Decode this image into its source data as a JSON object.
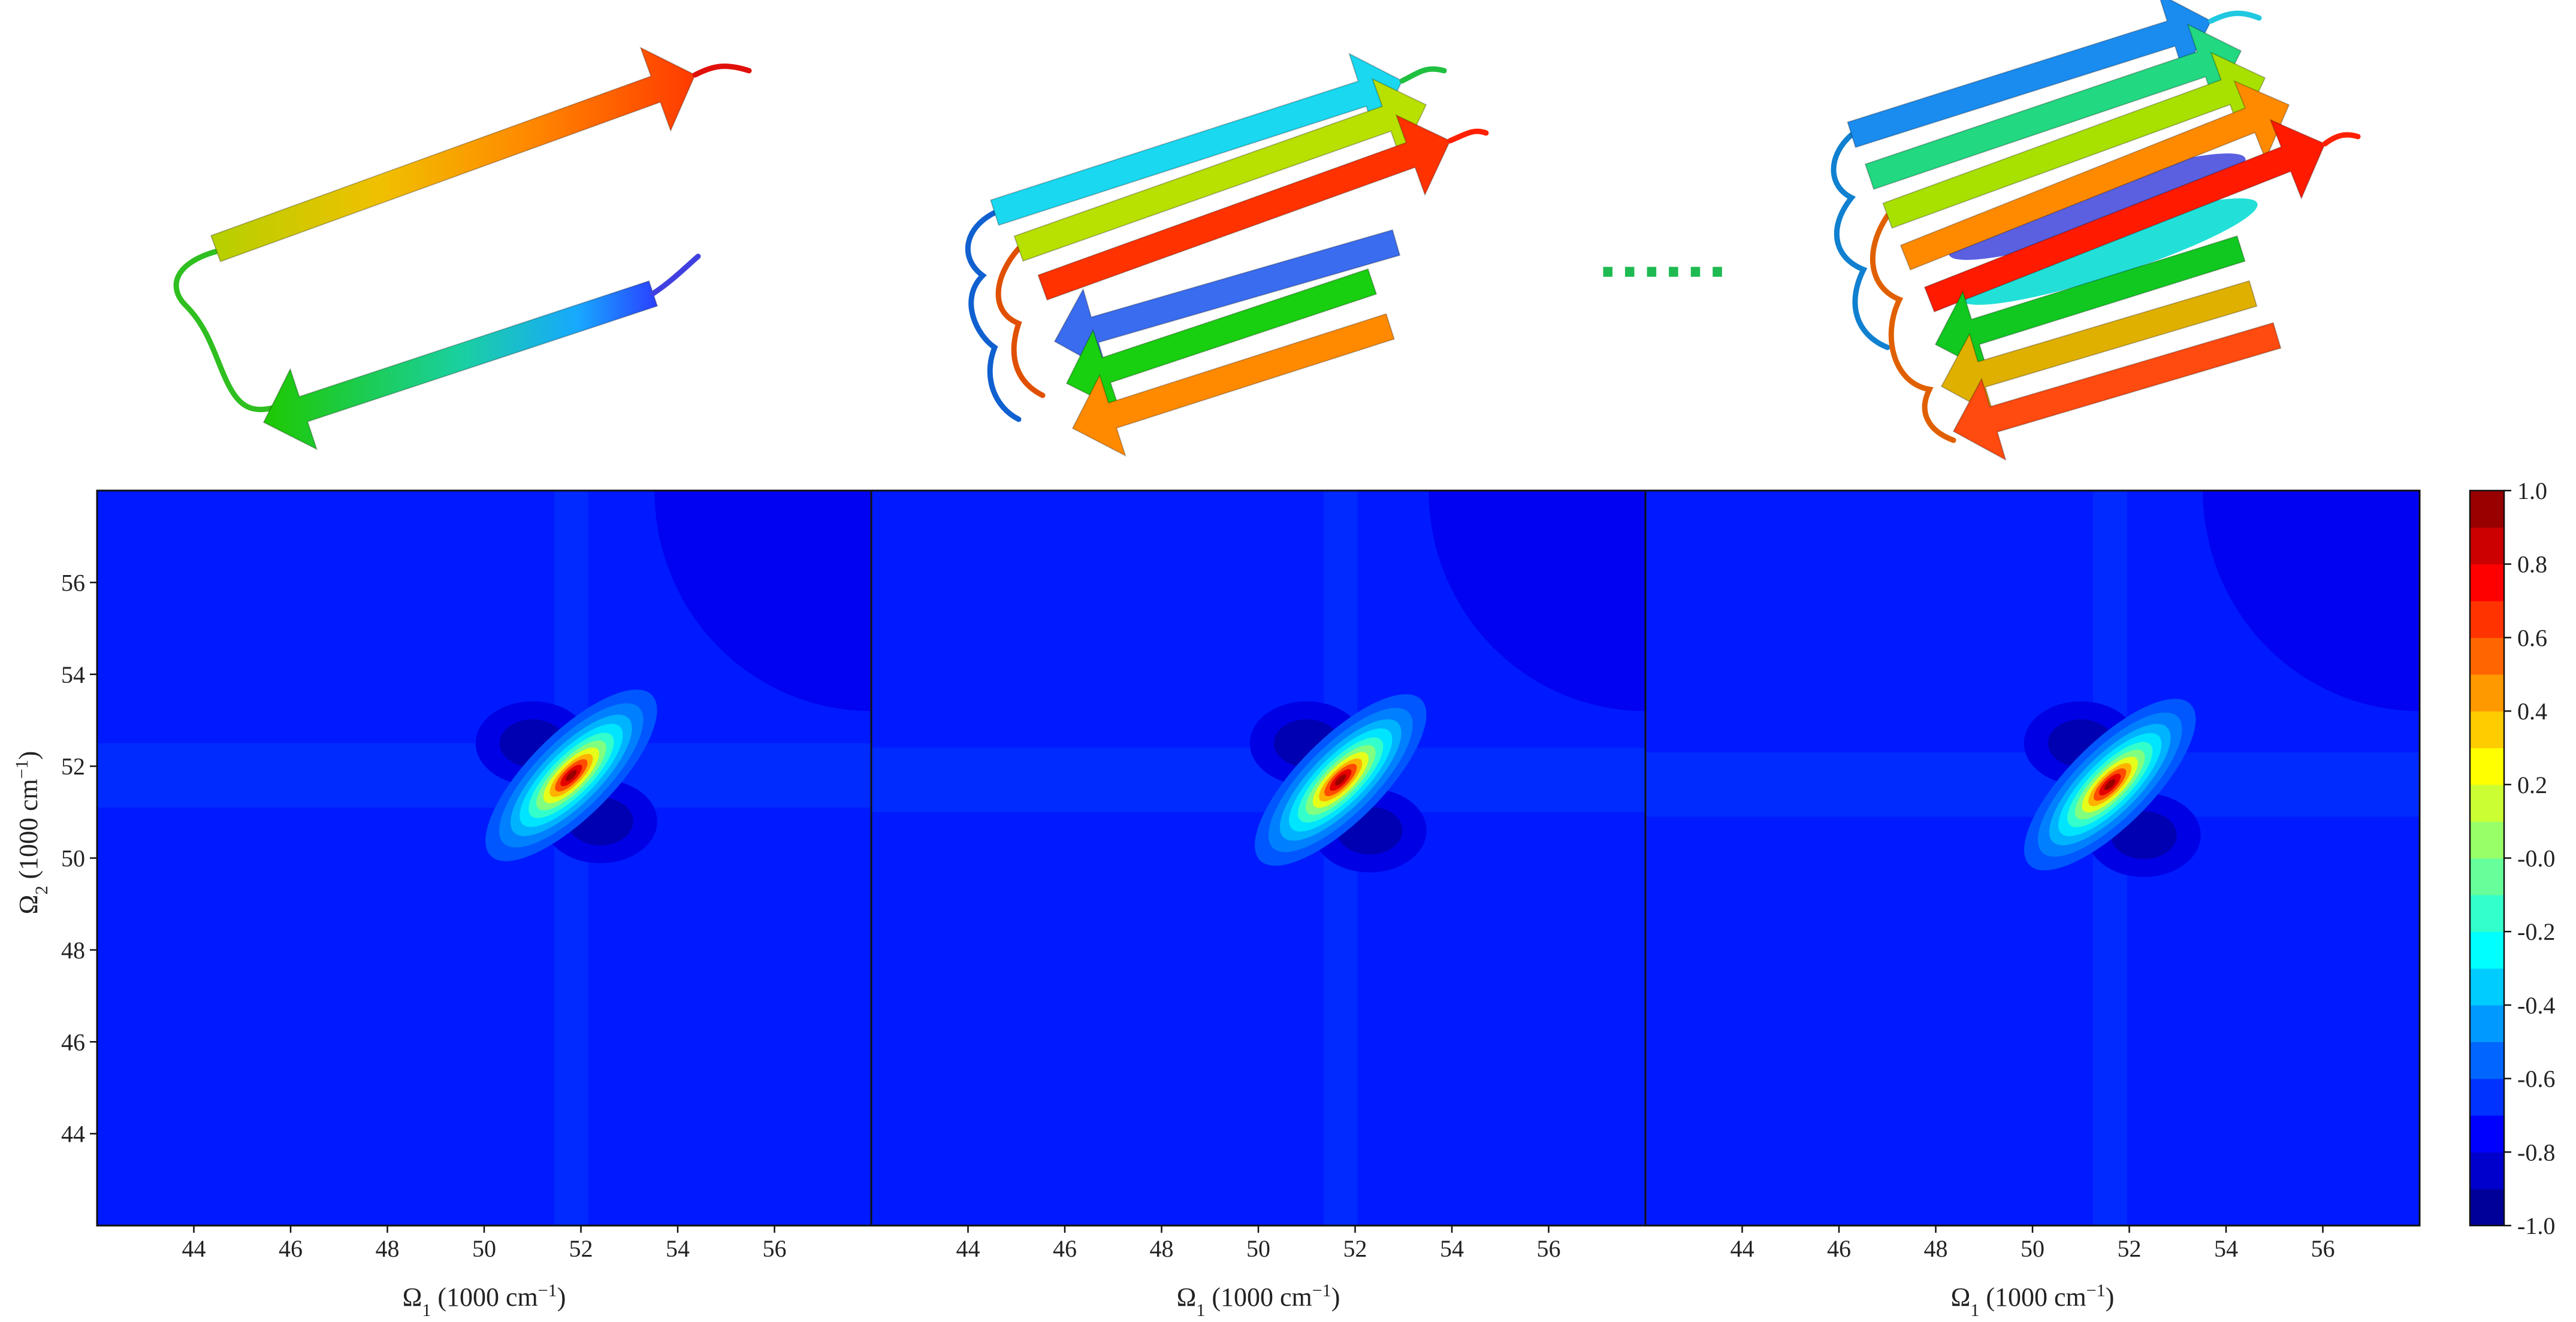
{
  "chart_data": [
    {
      "type": "heatmap",
      "panel": 1,
      "title": "",
      "xlabel_main": "Ω",
      "xlabel_sub": "1",
      "xlabel_unit": " (1000 cm",
      "xlabel_exp": "−1",
      "xlabel_close": ")",
      "ylabel_main": "Ω",
      "ylabel_sub": "2",
      "ylabel_unit": " (1000 cm",
      "ylabel_exp": "−1",
      "ylabel_close": ")",
      "xlim": [
        42,
        58
      ],
      "ylim": [
        42,
        58
      ],
      "xticks": [
        "44",
        "46",
        "48",
        "50",
        "52",
        "54",
        "56"
      ],
      "yticks": [
        "44",
        "46",
        "48",
        "50",
        "52",
        "54",
        "56"
      ],
      "peaks": [
        {
          "x": 51.8,
          "y": 51.8,
          "value": 1.0,
          "elongation": "diagonal"
        },
        {
          "x": 51.0,
          "y": 52.5,
          "value": -0.85
        },
        {
          "x": 52.4,
          "y": 50.8,
          "value": -0.85
        }
      ],
      "background_value": -0.7
    },
    {
      "type": "heatmap",
      "panel": 2,
      "title": "",
      "xlabel_main": "Ω",
      "xlabel_sub": "1",
      "xlabel_unit": " (1000 cm",
      "xlabel_exp": "−1",
      "xlabel_close": ")",
      "xlim": [
        42,
        58
      ],
      "ylim": [
        42,
        58
      ],
      "xticks": [
        "44",
        "46",
        "48",
        "50",
        "52",
        "54",
        "56"
      ],
      "peaks": [
        {
          "x": 51.7,
          "y": 51.7,
          "value": 1.0,
          "elongation": "diagonal"
        },
        {
          "x": 51.0,
          "y": 52.5,
          "value": -0.85
        },
        {
          "x": 52.3,
          "y": 50.6,
          "value": -0.85
        }
      ],
      "background_value": -0.7
    },
    {
      "type": "heatmap",
      "panel": 3,
      "title": "",
      "xlabel_main": "Ω",
      "xlabel_sub": "1",
      "xlabel_unit": " (1000 cm",
      "xlabel_exp": "−1",
      "xlabel_close": ")",
      "xlim": [
        42,
        58
      ],
      "ylim": [
        42,
        58
      ],
      "xticks": [
        "44",
        "46",
        "48",
        "50",
        "52",
        "54",
        "56"
      ],
      "peaks": [
        {
          "x": 51.6,
          "y": 51.6,
          "value": 1.0,
          "elongation": "diagonal"
        },
        {
          "x": 51.0,
          "y": 52.5,
          "value": -0.85
        },
        {
          "x": 52.3,
          "y": 50.5,
          "value": -0.85
        }
      ],
      "background_value": -0.7
    }
  ],
  "colorbar": {
    "range": [
      -1.0,
      1.0
    ],
    "ticks": [
      "1.0",
      "0.8",
      "0.6",
      "0.4",
      "0.2",
      "-0.0",
      "-0.2",
      "-0.4",
      "-0.6",
      "-0.8",
      "-1.0"
    ],
    "colormap": "jet"
  },
  "structures": [
    {
      "name": "beta-hairpin-monomer",
      "strands": 2
    },
    {
      "name": "beta-sheet-stack-medium",
      "strands": 6
    },
    {
      "name": "beta-sheet-stack-large",
      "strands": 9
    }
  ],
  "ellipsis": "......",
  "colors": {
    "ellipsis": "#1fba52",
    "jet_low": "#0000ff",
    "jet_mid": "#00ff00",
    "jet_high": "#ff0000"
  }
}
